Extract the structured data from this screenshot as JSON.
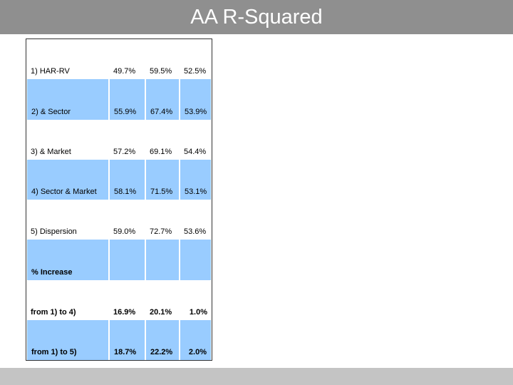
{
  "header": {
    "title": "AA R-Squared"
  },
  "table": {
    "rows": [
      [
        "1) HAR-RV",
        "49.7%",
        "59.5%",
        "52.5%"
      ],
      [
        "2) & Sector",
        "55.9%",
        "67.4%",
        "53.9%"
      ],
      [
        "3) & Market",
        "57.2%",
        "69.1%",
        "54.4%"
      ],
      [
        "4) Sector & Market",
        "58.1%",
        "71.5%",
        "53.1%"
      ],
      [
        "5) Dispersion",
        "59.0%",
        "72.7%",
        "53.6%"
      ],
      [
        "% Increase"
      ],
      [
        "from 1) to 4)",
        "16.9%",
        "20.1%",
        "1.0%"
      ],
      [
        "from 1) to 5)",
        "18.7%",
        "22.2%",
        "2.0%"
      ]
    ]
  }
}
